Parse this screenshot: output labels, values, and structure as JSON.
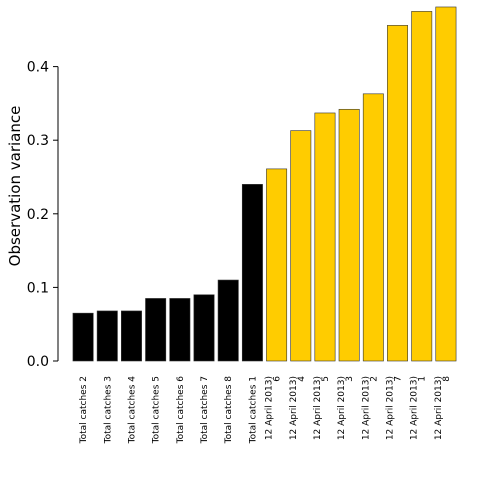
{
  "chart_data": {
    "type": "bar",
    "ylabel": "Observation variance",
    "xlabel": "",
    "ylim": [
      0,
      0.48
    ],
    "yticks": [
      "0.0",
      "0.1",
      "0.2",
      "0.3",
      "0.4"
    ],
    "ytick_values": [
      0.0,
      0.1,
      0.2,
      0.3,
      0.4
    ],
    "grid": false,
    "legend": "none",
    "categories": [
      {
        "line1": "Total catches 2",
        "line2": ""
      },
      {
        "line1": "Total catches 3",
        "line2": ""
      },
      {
        "line1": "Total catches 4",
        "line2": ""
      },
      {
        "line1": "Total catches 5",
        "line2": ""
      },
      {
        "line1": "Total catches 6",
        "line2": ""
      },
      {
        "line1": "Total catches 7",
        "line2": ""
      },
      {
        "line1": "Total catches 8",
        "line2": ""
      },
      {
        "line1": "Total catches 1",
        "line2": ""
      },
      {
        "line1": "6",
        "line2": "12 April 2013)"
      },
      {
        "line1": "4",
        "line2": "12 April 2013)"
      },
      {
        "line1": "5",
        "line2": "12 April 2013)"
      },
      {
        "line1": "3",
        "line2": "12 April 2013)"
      },
      {
        "line1": "2",
        "line2": "12 April 2013)"
      },
      {
        "line1": "7",
        "line2": "12 April 2013)"
      },
      {
        "line1": "1",
        "line2": "12 April 2013)"
      },
      {
        "line1": "8",
        "line2": "12 April 2013)"
      }
    ],
    "values": [
      0.065,
      0.068,
      0.068,
      0.085,
      0.085,
      0.09,
      0.11,
      0.24,
      0.261,
      0.313,
      0.337,
      0.342,
      0.363,
      0.456,
      0.475,
      0.481
    ],
    "colors": [
      "#000000",
      "#000000",
      "#000000",
      "#000000",
      "#000000",
      "#000000",
      "#000000",
      "#000000",
      "#ffcc00",
      "#ffcc00",
      "#ffcc00",
      "#ffcc00",
      "#ffcc00",
      "#ffcc00",
      "#ffcc00",
      "#ffcc00"
    ]
  }
}
